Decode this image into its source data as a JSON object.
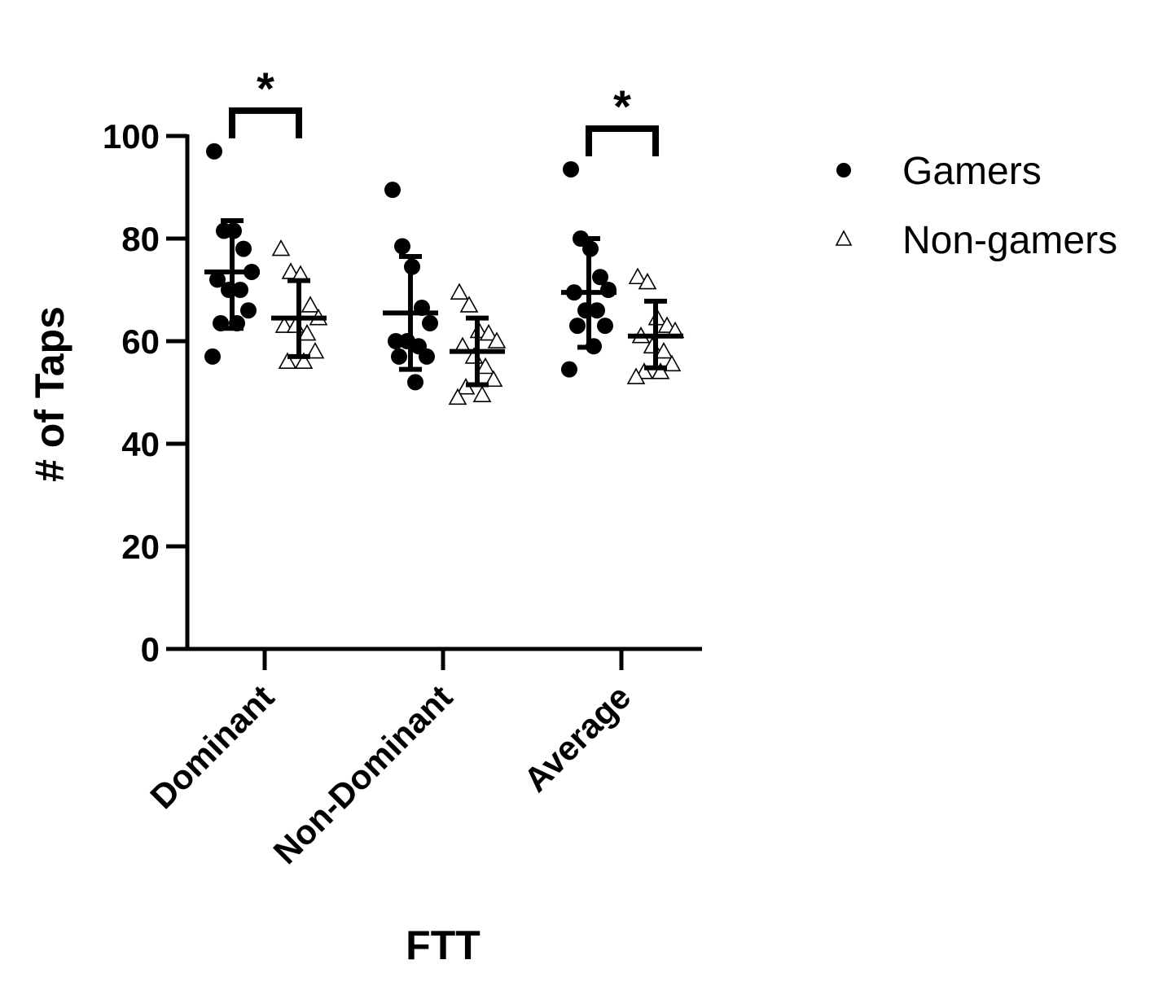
{
  "chart_data": {
    "type": "scatter",
    "xlabel": "FTT",
    "ylabel": "# of Taps",
    "ylim": [
      0,
      100
    ],
    "yticks": [
      "0",
      "20",
      "40",
      "60",
      "80",
      "100"
    ],
    "categories": [
      "Dominant",
      "Non-Dominant",
      "Average"
    ],
    "series": [
      {
        "name": "Gamers",
        "marker": "filled-circle",
        "color": "#000000",
        "points": [
          [
            97,
            81.5,
            81.5,
            78,
            73.5,
            72,
            70,
            70,
            66,
            63.5,
            63.5,
            57
          ],
          [
            89.5,
            78.5,
            74.5,
            66.5,
            63.5,
            60,
            60,
            59,
            57,
            57,
            52
          ],
          [
            93.5,
            80,
            78,
            72.5,
            70,
            69.5,
            66,
            66,
            63,
            63,
            59,
            54.5
          ]
        ],
        "mean": [
          73.5,
          65.5,
          69.5
        ],
        "sd_low": [
          62.5,
          54.5,
          58.8
        ],
        "sd_high": [
          83.5,
          76.5,
          80
        ]
      },
      {
        "name": "Non-gamers",
        "marker": "open-triangle",
        "color": "#000000",
        "points": [
          [
            78,
            73.5,
            73,
            67,
            64.5,
            63,
            63,
            61.5,
            58,
            56,
            56
          ],
          [
            69.5,
            67,
            62,
            61.5,
            60,
            59,
            57,
            55,
            52.5,
            51,
            49.5,
            49
          ],
          [
            72.5,
            71.5,
            64.5,
            63,
            62,
            61,
            59,
            58,
            55.5,
            54,
            54,
            53
          ]
        ],
        "mean": [
          64.5,
          58,
          61
        ],
        "sd_low": [
          57,
          51.5,
          54.8
        ],
        "sd_high": [
          71.8,
          64.5,
          67.8
        ]
      }
    ],
    "significance": [
      {
        "category": "Dominant",
        "label": "*"
      },
      {
        "category": "Average",
        "label": "*"
      }
    ],
    "legend_position": "top-right"
  }
}
